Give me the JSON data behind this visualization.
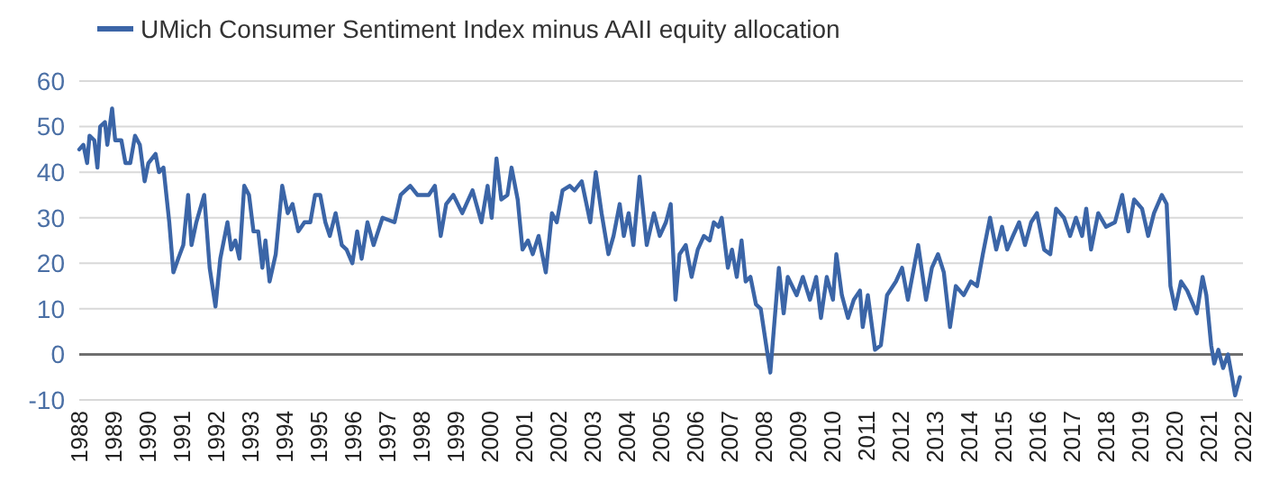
{
  "chart_data": {
    "type": "line",
    "legend": "top left",
    "grid": "y",
    "marker": "none",
    "line_style": "solid",
    "xlim": [
      1988,
      2022
    ],
    "xticks": [
      1988,
      1989,
      1990,
      1991,
      1992,
      1993,
      1994,
      1995,
      1996,
      1997,
      1998,
      1999,
      2000,
      2001,
      2002,
      2003,
      2004,
      2005,
      2006,
      2007,
      2008,
      2009,
      2010,
      2011,
      2012,
      2013,
      2014,
      2015,
      2016,
      2017,
      2018,
      2019,
      2020,
      2021,
      2022
    ],
    "ylim": [
      -10,
      60
    ],
    "yticks": [
      -10,
      0,
      10,
      20,
      30,
      40,
      50,
      60
    ],
    "series": [
      {
        "name": "UMich Consumer Sentiment Index minus AAII equity allocation",
        "color": "#3b65a7",
        "x": [
          1988.0,
          1988.12,
          1988.23,
          1988.3,
          1988.44,
          1988.53,
          1988.61,
          1988.75,
          1988.82,
          1988.96,
          1989.05,
          1989.23,
          1989.35,
          1989.49,
          1989.63,
          1989.77,
          1989.91,
          1990.02,
          1990.23,
          1990.33,
          1990.46,
          1990.63,
          1990.75,
          1990.89,
          1991.04,
          1991.18,
          1991.28,
          1991.42,
          1991.65,
          1991.81,
          1991.98,
          1992.12,
          1992.33,
          1992.44,
          1992.56,
          1992.68,
          1992.82,
          1992.96,
          1993.09,
          1993.23,
          1993.35,
          1993.44,
          1993.56,
          1993.74,
          1993.93,
          1994.09,
          1994.23,
          1994.4,
          1994.58,
          1994.75,
          1994.89,
          1995.04,
          1995.19,
          1995.32,
          1995.49,
          1995.67,
          1995.81,
          1995.98,
          1996.12,
          1996.25,
          1996.42,
          1996.6,
          1996.86,
          1997.21,
          1997.39,
          1997.67,
          1997.88,
          1998.21,
          1998.39,
          1998.56,
          1998.72,
          1998.93,
          1999.19,
          1999.49,
          1999.75,
          1999.93,
          2000.05,
          2000.19,
          2000.33,
          2000.51,
          2000.63,
          2000.81,
          2000.95,
          2001.11,
          2001.25,
          2001.42,
          2001.63,
          2001.81,
          2001.95,
          2002.12,
          2002.33,
          2002.47,
          2002.68,
          2002.93,
          2003.09,
          2003.26,
          2003.46,
          2003.61,
          2003.79,
          2003.91,
          2004.05,
          2004.19,
          2004.37,
          2004.58,
          2004.79,
          2004.96,
          2005.14,
          2005.28,
          2005.42,
          2005.54,
          2005.72,
          2005.89,
          2006.07,
          2006.25,
          2006.42,
          2006.54,
          2006.68,
          2006.77,
          2006.95,
          2007.07,
          2007.21,
          2007.35,
          2007.47,
          2007.61,
          2007.77,
          2007.91,
          2008.09,
          2008.19,
          2008.44,
          2008.58,
          2008.7,
          2008.96,
          2009.14,
          2009.35,
          2009.53,
          2009.67,
          2009.84,
          2010.02,
          2010.12,
          2010.28,
          2010.46,
          2010.63,
          2010.81,
          2010.89,
          2011.04,
          2011.25,
          2011.42,
          2011.6,
          2011.86,
          2012.04,
          2012.21,
          2012.51,
          2012.74,
          2012.91,
          2013.09,
          2013.26,
          2013.44,
          2013.61,
          2013.84,
          2014.05,
          2014.23,
          2014.4,
          2014.61,
          2014.79,
          2014.96,
          2015.11,
          2015.28,
          2015.46,
          2015.63,
          2015.81,
          2015.98,
          2016.19,
          2016.37,
          2016.54,
          2016.77,
          2016.95,
          2017.12,
          2017.3,
          2017.42,
          2017.56,
          2017.77,
          2018.0,
          2018.26,
          2018.47,
          2018.65,
          2018.82,
          2019.05,
          2019.23,
          2019.4,
          2019.63,
          2019.77,
          2019.88,
          2020.02,
          2020.19,
          2020.37,
          2020.54,
          2020.65,
          2020.82,
          2020.93,
          2021.07,
          2021.16,
          2021.28,
          2021.42,
          2021.56,
          2021.68,
          2021.77,
          2021.91
        ],
        "values": [
          45,
          46,
          42,
          48,
          47,
          41,
          50,
          51,
          46,
          54,
          47,
          47,
          42,
          42,
          48,
          46,
          38,
          42,
          44,
          40,
          41,
          29,
          18,
          21,
          24,
          35,
          24,
          29,
          35,
          19,
          10.5,
          21,
          29,
          23,
          25,
          21,
          37,
          35,
          27,
          27,
          19,
          25,
          16,
          22,
          37,
          31,
          33,
          27,
          29,
          29,
          35,
          35,
          29,
          26,
          31,
          24,
          23,
          20,
          27,
          21,
          29,
          24,
          30,
          29,
          35,
          37,
          35,
          35,
          37,
          26,
          33,
          35,
          31,
          36,
          29,
          37,
          30,
          43,
          34,
          35,
          41,
          34,
          23,
          25,
          22,
          26,
          18,
          31,
          29,
          36,
          37,
          36,
          38,
          29,
          40,
          31,
          22,
          26,
          33,
          26,
          31,
          24,
          39,
          24,
          31,
          26,
          29,
          33,
          12,
          22,
          24,
          17,
          23,
          26,
          25,
          29,
          28,
          30,
          19,
          23,
          17,
          25,
          16,
          17,
          11,
          10,
          1,
          -4,
          19,
          9,
          17,
          13,
          17,
          12,
          17,
          8,
          17,
          12,
          22,
          13,
          8,
          12,
          14,
          6,
          13,
          1,
          2,
          13,
          16,
          19,
          12,
          24,
          12,
          19,
          22,
          18,
          6,
          15,
          13,
          16,
          15,
          22,
          30,
          23,
          28,
          23,
          26,
          29,
          24,
          29,
          31,
          23,
          22,
          32,
          30,
          26,
          30,
          26,
          32,
          23,
          31,
          28,
          29,
          35,
          27,
          34,
          32,
          26,
          31,
          35,
          33,
          15,
          10,
          16,
          14,
          11,
          9,
          17,
          13,
          2,
          -2,
          1,
          -3,
          0,
          -5,
          -9,
          -5
        ]
      }
    ]
  }
}
